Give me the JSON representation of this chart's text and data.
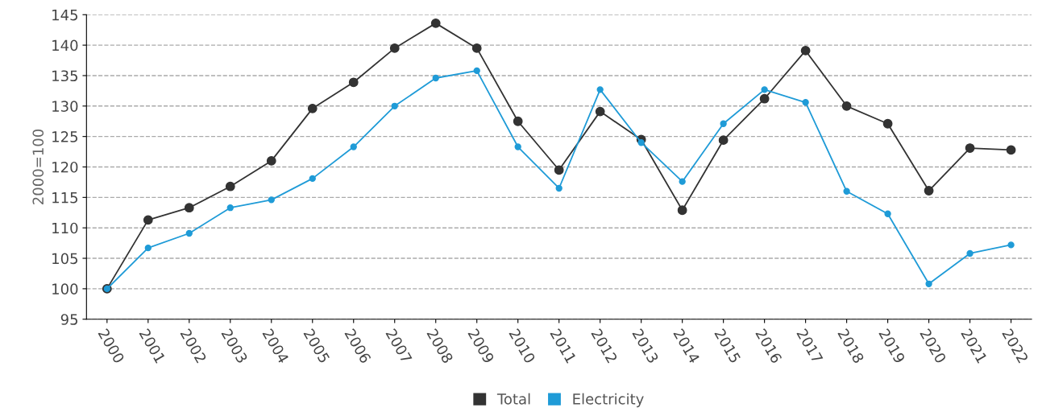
{
  "chart_data": {
    "type": "line",
    "ylabel": "2000=100",
    "categories": [
      "2000",
      "2001",
      "2002",
      "2003",
      "2004",
      "2005",
      "2006",
      "2007",
      "2008",
      "2009",
      "2010",
      "2011",
      "2012",
      "2013",
      "2014",
      "2015",
      "2016",
      "2017",
      "2018",
      "2019",
      "2020",
      "2021",
      "2022"
    ],
    "series": [
      {
        "name": "Total",
        "color": "#333333",
        "values": [
          100,
          111.3,
          113.3,
          116.8,
          121.0,
          129.6,
          133.9,
          139.5,
          143.6,
          139.5,
          127.5,
          119.5,
          129.1,
          124.5,
          112.9,
          124.4,
          131.2,
          139.1,
          130.0,
          127.1,
          116.1,
          123.1,
          122.8
        ]
      },
      {
        "name": "Electricity",
        "color": "#1f9bd7",
        "values": [
          100,
          106.7,
          109.1,
          113.3,
          114.6,
          118.1,
          123.3,
          130.0,
          134.6,
          135.8,
          123.3,
          116.5,
          132.7,
          124.0,
          117.6,
          127.1,
          132.7,
          130.6,
          116.0,
          112.3,
          100.8,
          105.8,
          107.2
        ]
      }
    ],
    "ylim": [
      95,
      145
    ],
    "yticks": [
      95,
      100,
      105,
      110,
      115,
      120,
      125,
      130,
      135,
      140,
      145
    ],
    "grid": "y",
    "legend": "bottom",
    "marker": "circle",
    "line_style": "solid"
  }
}
